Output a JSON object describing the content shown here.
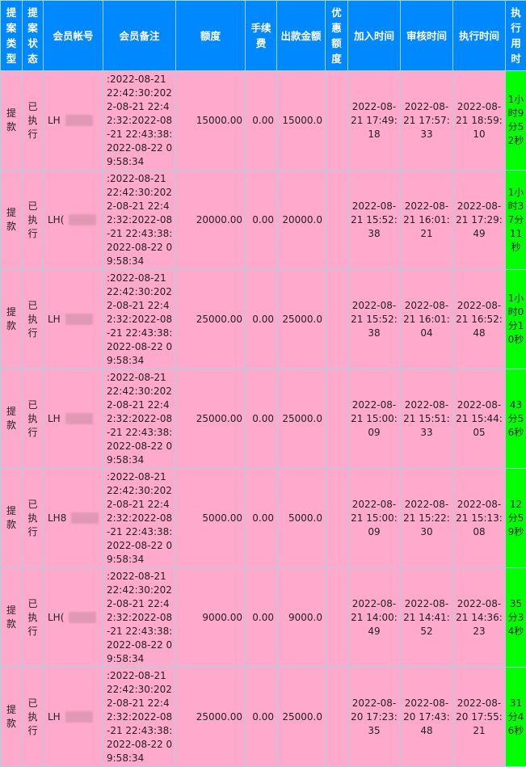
{
  "headers": [
    "提案类型",
    "提案状态",
    "会员帐号",
    "会员备注",
    "额度",
    "手续费",
    "出款金额",
    "优惠额度",
    "加入时间",
    "审核时间",
    "执行时间",
    "执行用时"
  ],
  "colors": {
    "header_bg": "#0088ff",
    "row_bg": "#ffaacc",
    "duration_bg": "#00ff00"
  },
  "rows": [
    {
      "type": "提款",
      "status": "已执行",
      "account": "LH",
      "note": ":2022-08-21 22:42:30:2022-08-21 22:42:32:2022-08-21 22:43:38:2022-08-22 09:58:34",
      "amount": "15000.00",
      "fee": "0.00",
      "payout": "15000.0",
      "bonus": "",
      "added": "2022-08-21 17:49:18",
      "reviewed": "2022-08-21 17:57:33",
      "executed": "2022-08-21 18:59:10",
      "duration": "1小时9分52秒"
    },
    {
      "type": "提款",
      "status": "已执行",
      "account": "LH(",
      "note": ":2022-08-21 22:42:30:2022-08-21 22:42:32:2022-08-21 22:43:38:2022-08-22 09:58:34",
      "amount": "20000.00",
      "fee": "0.00",
      "payout": "20000.0",
      "bonus": "",
      "added": "2022-08-21 15:52:38",
      "reviewed": "2022-08-21 16:01:21",
      "executed": "2022-08-21 17:29:49",
      "duration": "1小时37分11秒"
    },
    {
      "type": "提款",
      "status": "已执行",
      "account": "LH",
      "note": ":2022-08-21 22:42:30:2022-08-21 22:42:32:2022-08-21 22:43:38:2022-08-22 09:58:34",
      "amount": "25000.00",
      "fee": "0.00",
      "payout": "25000.0",
      "bonus": "",
      "added": "2022-08-21 15:52:38",
      "reviewed": "2022-08-21 16:01:04",
      "executed": "2022-08-21 16:52:48",
      "duration": "1小时0分10秒"
    },
    {
      "type": "提款",
      "status": "已执行",
      "account": "LH",
      "note": ":2022-08-21 22:42:30:2022-08-21 22:42:32:2022-08-21 22:43:38:2022-08-22 09:58:34",
      "amount": "25000.00",
      "fee": "0.00",
      "payout": "25000.0",
      "bonus": "",
      "added": "2022-08-21 15:00:09",
      "reviewed": "2022-08-21 15:51:33",
      "executed": "2022-08-21 15:44:05",
      "duration": "43分56秒"
    },
    {
      "type": "提款",
      "status": "已执行",
      "account": "LH8",
      "note": ":2022-08-21 22:42:30:2022-08-21 22:42:32:2022-08-21 22:43:38:2022-08-22 09:58:34",
      "amount": "5000.00",
      "fee": "0.00",
      "payout": "5000.0",
      "bonus": "",
      "added": "2022-08-21 15:00:09",
      "reviewed": "2022-08-21 15:22:30",
      "executed": "2022-08-21 15:13:08",
      "duration": "12分59秒"
    },
    {
      "type": "提款",
      "status": "已执行",
      "account": "LH(",
      "note": ":2022-08-21 22:42:30:2022-08-21 22:42:32:2022-08-21 22:43:38:2022-08-22 09:58:34",
      "amount": "9000.00",
      "fee": "0.00",
      "payout": "9000.0",
      "bonus": "",
      "added": "2022-08-21 14:00:49",
      "reviewed": "2022-08-21 14:41:52",
      "executed": "2022-08-21 14:36:23",
      "duration": "35分34秒"
    },
    {
      "type": "提款",
      "status": "已执行",
      "account": "LH",
      "note": ":2022-08-21 22:42:30:2022-08-21 22:42:32:2022-08-21 22:43:38:2022-08-22 09:58:34",
      "amount": "25000.00",
      "fee": "0.00",
      "payout": "25000.0",
      "bonus": "",
      "added": "2022-08-20 17:23:35",
      "reviewed": "2022-08-20 17:43:48",
      "executed": "2022-08-20 17:55:21",
      "duration": "31分46秒"
    }
  ]
}
